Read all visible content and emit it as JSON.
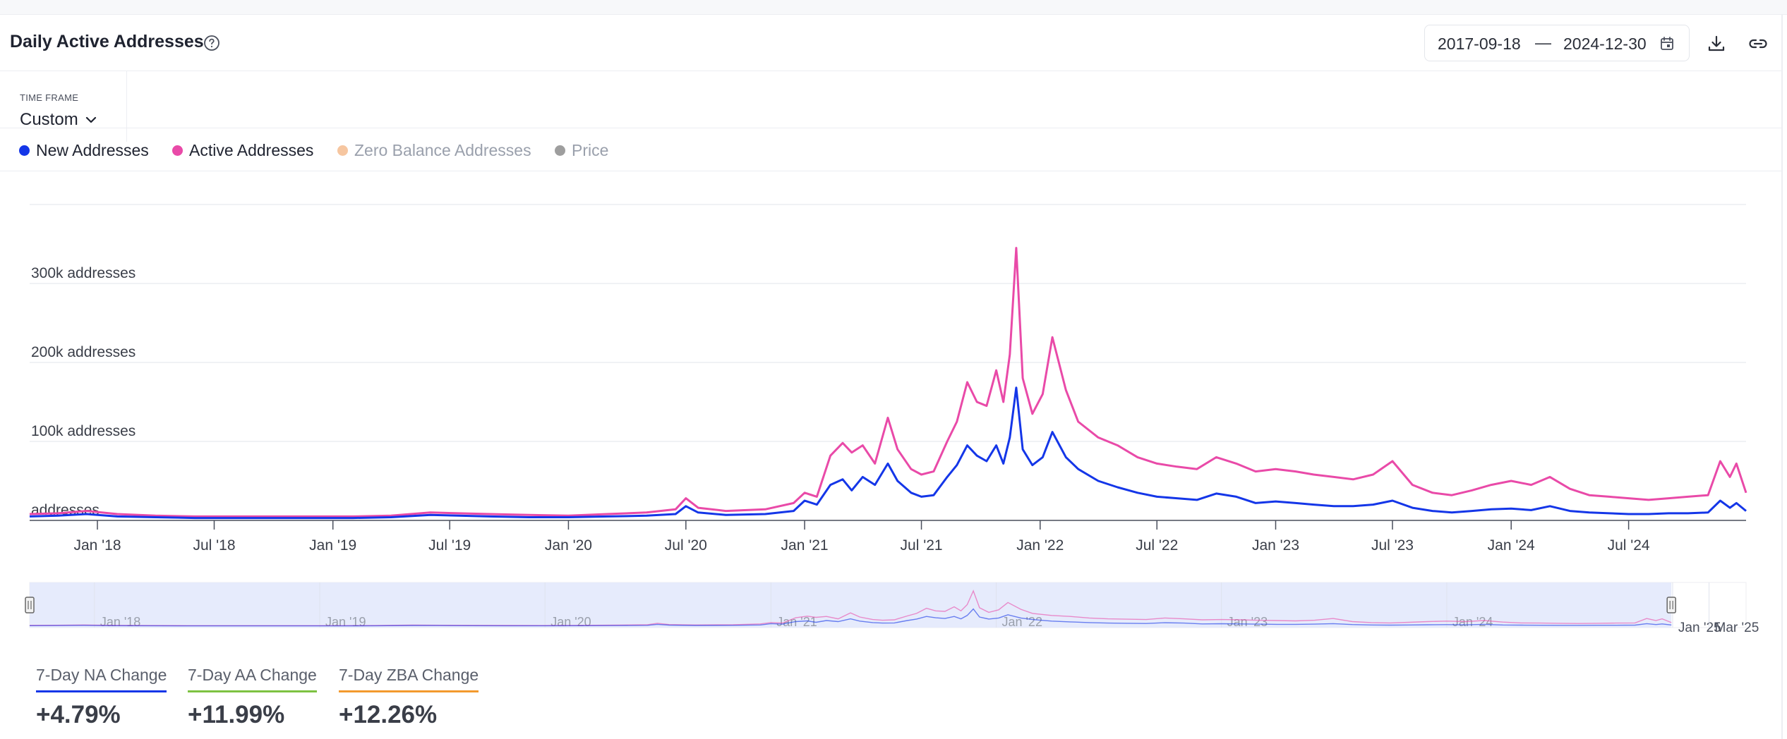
{
  "header": {
    "title": "Daily Active Addresses",
    "date_start": "2017-09-18",
    "date_separator": "—",
    "date_end": "2024-12-30"
  },
  "timeframe": {
    "label": "TIME FRAME",
    "value": "Custom"
  },
  "legend": [
    {
      "label": "New Addresses",
      "color": "#1436e8",
      "active": true
    },
    {
      "label": "Active Addresses",
      "color": "#e94aa8",
      "active": true
    },
    {
      "label": "Zero Balance Addresses",
      "color": "#f6c6a0",
      "active": false
    },
    {
      "label": "Price",
      "color": "#9e9e9e",
      "active": false
    }
  ],
  "stats": [
    {
      "label": "7-Day NA Change",
      "value": "+4.79%",
      "color": "#1436e8"
    },
    {
      "label": "7-Day AA Change",
      "value": "+11.99%",
      "color": "#7dc242"
    },
    {
      "label": "7-Day ZBA Change",
      "value": "+12.26%",
      "color": "#f39a2e"
    }
  ],
  "chart_data": {
    "type": "line",
    "y_ticks": [
      {
        "value": 0,
        "label": "addresses"
      },
      {
        "value": 100000,
        "label": "100k addresses"
      },
      {
        "value": 200000,
        "label": "200k addresses"
      },
      {
        "value": 300000,
        "label": "300k addresses"
      }
    ],
    "ylim": [
      0,
      400000
    ],
    "x_range": [
      "2017-09-18",
      "2024-12-30"
    ],
    "x_ticks": [
      {
        "date": "2018-01-01",
        "label": "Jan '18"
      },
      {
        "date": "2018-07-01",
        "label": "Jul '18"
      },
      {
        "date": "2019-01-01",
        "label": "Jan '19"
      },
      {
        "date": "2019-07-01",
        "label": "Jul '19"
      },
      {
        "date": "2020-01-01",
        "label": "Jan '20"
      },
      {
        "date": "2020-07-01",
        "label": "Jul '20"
      },
      {
        "date": "2021-01-01",
        "label": "Jan '21"
      },
      {
        "date": "2021-07-01",
        "label": "Jul '21"
      },
      {
        "date": "2022-01-01",
        "label": "Jan '22"
      },
      {
        "date": "2022-07-01",
        "label": "Jul '22"
      },
      {
        "date": "2023-01-01",
        "label": "Jan '23"
      },
      {
        "date": "2023-07-01",
        "label": "Jul '23"
      },
      {
        "date": "2024-01-01",
        "label": "Jan '24"
      },
      {
        "date": "2024-07-01",
        "label": "Jul '24"
      }
    ],
    "grid": true,
    "series": [
      {
        "name": "Active Addresses",
        "color": "#e94aa8",
        "points": [
          [
            "2017-09-18",
            8000
          ],
          [
            "2017-11-01",
            9000
          ],
          [
            "2017-12-15",
            12000
          ],
          [
            "2018-02-01",
            8000
          ],
          [
            "2018-04-01",
            6000
          ],
          [
            "2018-06-01",
            5000
          ],
          [
            "2018-08-01",
            5000
          ],
          [
            "2018-10-01",
            5000
          ],
          [
            "2018-12-01",
            5000
          ],
          [
            "2019-02-01",
            5000
          ],
          [
            "2019-04-01",
            6000
          ],
          [
            "2019-06-01",
            10000
          ],
          [
            "2019-07-15",
            9000
          ],
          [
            "2019-09-01",
            8000
          ],
          [
            "2019-11-01",
            7000
          ],
          [
            "2020-01-01",
            6000
          ],
          [
            "2020-03-01",
            8000
          ],
          [
            "2020-05-01",
            10000
          ],
          [
            "2020-06-15",
            14000
          ],
          [
            "2020-07-01",
            28000
          ],
          [
            "2020-07-20",
            16000
          ],
          [
            "2020-09-01",
            12000
          ],
          [
            "2020-11-01",
            14000
          ],
          [
            "2020-12-15",
            22000
          ],
          [
            "2021-01-01",
            35000
          ],
          [
            "2021-01-20",
            30000
          ],
          [
            "2021-02-10",
            82000
          ],
          [
            "2021-03-01",
            98000
          ],
          [
            "2021-03-15",
            86000
          ],
          [
            "2021-04-01",
            95000
          ],
          [
            "2021-04-20",
            72000
          ],
          [
            "2021-05-10",
            130000
          ],
          [
            "2021-05-25",
            90000
          ],
          [
            "2021-06-15",
            65000
          ],
          [
            "2021-07-01",
            58000
          ],
          [
            "2021-07-20",
            62000
          ],
          [
            "2021-08-10",
            100000
          ],
          [
            "2021-08-25",
            125000
          ],
          [
            "2021-09-10",
            175000
          ],
          [
            "2021-09-25",
            150000
          ],
          [
            "2021-10-10",
            145000
          ],
          [
            "2021-10-25",
            190000
          ],
          [
            "2021-11-05",
            150000
          ],
          [
            "2021-11-15",
            210000
          ],
          [
            "2021-11-25",
            345000
          ],
          [
            "2021-12-05",
            180000
          ],
          [
            "2021-12-20",
            135000
          ],
          [
            "2022-01-05",
            160000
          ],
          [
            "2022-01-20",
            232000
          ],
          [
            "2022-02-10",
            165000
          ],
          [
            "2022-03-01",
            125000
          ],
          [
            "2022-04-01",
            105000
          ],
          [
            "2022-05-01",
            95000
          ],
          [
            "2022-06-01",
            80000
          ],
          [
            "2022-07-01",
            72000
          ],
          [
            "2022-08-01",
            68000
          ],
          [
            "2022-09-01",
            65000
          ],
          [
            "2022-10-01",
            80000
          ],
          [
            "2022-11-01",
            72000
          ],
          [
            "2022-12-01",
            62000
          ],
          [
            "2023-01-01",
            65000
          ],
          [
            "2023-02-01",
            62000
          ],
          [
            "2023-03-01",
            58000
          ],
          [
            "2023-04-01",
            55000
          ],
          [
            "2023-05-01",
            52000
          ],
          [
            "2023-06-01",
            58000
          ],
          [
            "2023-07-01",
            75000
          ],
          [
            "2023-08-01",
            45000
          ],
          [
            "2023-09-01",
            35000
          ],
          [
            "2023-10-01",
            32000
          ],
          [
            "2023-11-01",
            38000
          ],
          [
            "2023-12-01",
            45000
          ],
          [
            "2024-01-01",
            50000
          ],
          [
            "2024-02-01",
            45000
          ],
          [
            "2024-03-01",
            55000
          ],
          [
            "2024-04-01",
            40000
          ],
          [
            "2024-05-01",
            32000
          ],
          [
            "2024-06-01",
            30000
          ],
          [
            "2024-07-01",
            28000
          ],
          [
            "2024-08-01",
            26000
          ],
          [
            "2024-09-01",
            28000
          ],
          [
            "2024-10-01",
            30000
          ],
          [
            "2024-11-01",
            32000
          ],
          [
            "2024-11-20",
            75000
          ],
          [
            "2024-12-05",
            55000
          ],
          [
            "2024-12-15",
            72000
          ],
          [
            "2024-12-30",
            35000
          ]
        ]
      },
      {
        "name": "New Addresses",
        "color": "#1436e8",
        "points": [
          [
            "2017-09-18",
            5000
          ],
          [
            "2017-11-01",
            6000
          ],
          [
            "2017-12-15",
            8000
          ],
          [
            "2018-02-01",
            5000
          ],
          [
            "2018-04-01",
            4000
          ],
          [
            "2018-06-01",
            3000
          ],
          [
            "2018-08-01",
            3000
          ],
          [
            "2018-10-01",
            3000
          ],
          [
            "2018-12-01",
            3000
          ],
          [
            "2019-02-01",
            3000
          ],
          [
            "2019-04-01",
            4000
          ],
          [
            "2019-06-01",
            7000
          ],
          [
            "2019-07-15",
            6000
          ],
          [
            "2019-09-01",
            5000
          ],
          [
            "2019-11-01",
            4000
          ],
          [
            "2020-01-01",
            4000
          ],
          [
            "2020-03-01",
            5000
          ],
          [
            "2020-05-01",
            6000
          ],
          [
            "2020-06-15",
            8000
          ],
          [
            "2020-07-01",
            18000
          ],
          [
            "2020-07-20",
            10000
          ],
          [
            "2020-09-01",
            7000
          ],
          [
            "2020-11-01",
            8000
          ],
          [
            "2020-12-15",
            12000
          ],
          [
            "2021-01-01",
            25000
          ],
          [
            "2021-01-20",
            20000
          ],
          [
            "2021-02-10",
            45000
          ],
          [
            "2021-03-01",
            52000
          ],
          [
            "2021-03-15",
            38000
          ],
          [
            "2021-04-01",
            55000
          ],
          [
            "2021-04-20",
            45000
          ],
          [
            "2021-05-10",
            72000
          ],
          [
            "2021-05-25",
            50000
          ],
          [
            "2021-06-15",
            35000
          ],
          [
            "2021-07-01",
            30000
          ],
          [
            "2021-07-20",
            32000
          ],
          [
            "2021-08-10",
            55000
          ],
          [
            "2021-08-25",
            70000
          ],
          [
            "2021-09-10",
            95000
          ],
          [
            "2021-09-25",
            82000
          ],
          [
            "2021-10-10",
            75000
          ],
          [
            "2021-10-25",
            95000
          ],
          [
            "2021-11-05",
            72000
          ],
          [
            "2021-11-15",
            105000
          ],
          [
            "2021-11-25",
            168000
          ],
          [
            "2021-12-05",
            90000
          ],
          [
            "2021-12-20",
            70000
          ],
          [
            "2022-01-05",
            80000
          ],
          [
            "2022-01-20",
            112000
          ],
          [
            "2022-02-10",
            80000
          ],
          [
            "2022-03-01",
            65000
          ],
          [
            "2022-04-01",
            50000
          ],
          [
            "2022-05-01",
            42000
          ],
          [
            "2022-06-01",
            35000
          ],
          [
            "2022-07-01",
            30000
          ],
          [
            "2022-08-01",
            28000
          ],
          [
            "2022-09-01",
            26000
          ],
          [
            "2022-10-01",
            34000
          ],
          [
            "2022-11-01",
            30000
          ],
          [
            "2022-12-01",
            22000
          ],
          [
            "2023-01-01",
            24000
          ],
          [
            "2023-02-01",
            22000
          ],
          [
            "2023-03-01",
            20000
          ],
          [
            "2023-04-01",
            18000
          ],
          [
            "2023-05-01",
            18000
          ],
          [
            "2023-06-01",
            20000
          ],
          [
            "2023-07-01",
            25000
          ],
          [
            "2023-08-01",
            16000
          ],
          [
            "2023-09-01",
            12000
          ],
          [
            "2023-10-01",
            10000
          ],
          [
            "2023-11-01",
            12000
          ],
          [
            "2023-12-01",
            14000
          ],
          [
            "2024-01-01",
            15000
          ],
          [
            "2024-02-01",
            13000
          ],
          [
            "2024-03-01",
            18000
          ],
          [
            "2024-04-01",
            12000
          ],
          [
            "2024-05-01",
            10000
          ],
          [
            "2024-06-01",
            9000
          ],
          [
            "2024-07-01",
            8000
          ],
          [
            "2024-08-01",
            8000
          ],
          [
            "2024-09-01",
            9000
          ],
          [
            "2024-10-01",
            9000
          ],
          [
            "2024-11-01",
            10000
          ],
          [
            "2024-11-20",
            25000
          ],
          [
            "2024-12-05",
            16000
          ],
          [
            "2024-12-15",
            22000
          ],
          [
            "2024-12-30",
            12000
          ]
        ]
      }
    ],
    "navigator": {
      "range": [
        "2017-09-18",
        "2025-04-30"
      ],
      "selected": [
        "2017-09-18",
        "2024-12-30"
      ],
      "x_ticks": [
        {
          "date": "2018-01-01",
          "label": "Jan '18"
        },
        {
          "date": "2019-01-01",
          "label": "Jan '19"
        },
        {
          "date": "2020-01-01",
          "label": "Jan '20"
        },
        {
          "date": "2021-01-01",
          "label": "Jan '21"
        },
        {
          "date": "2022-01-01",
          "label": "Jan '22"
        },
        {
          "date": "2023-01-01",
          "label": "Jan '23"
        },
        {
          "date": "2024-01-01",
          "label": "Jan '24"
        },
        {
          "date": "2025-01-01",
          "label": "Jan '25"
        },
        {
          "date": "2025-03-01",
          "label": "Mar '25"
        }
      ]
    }
  }
}
